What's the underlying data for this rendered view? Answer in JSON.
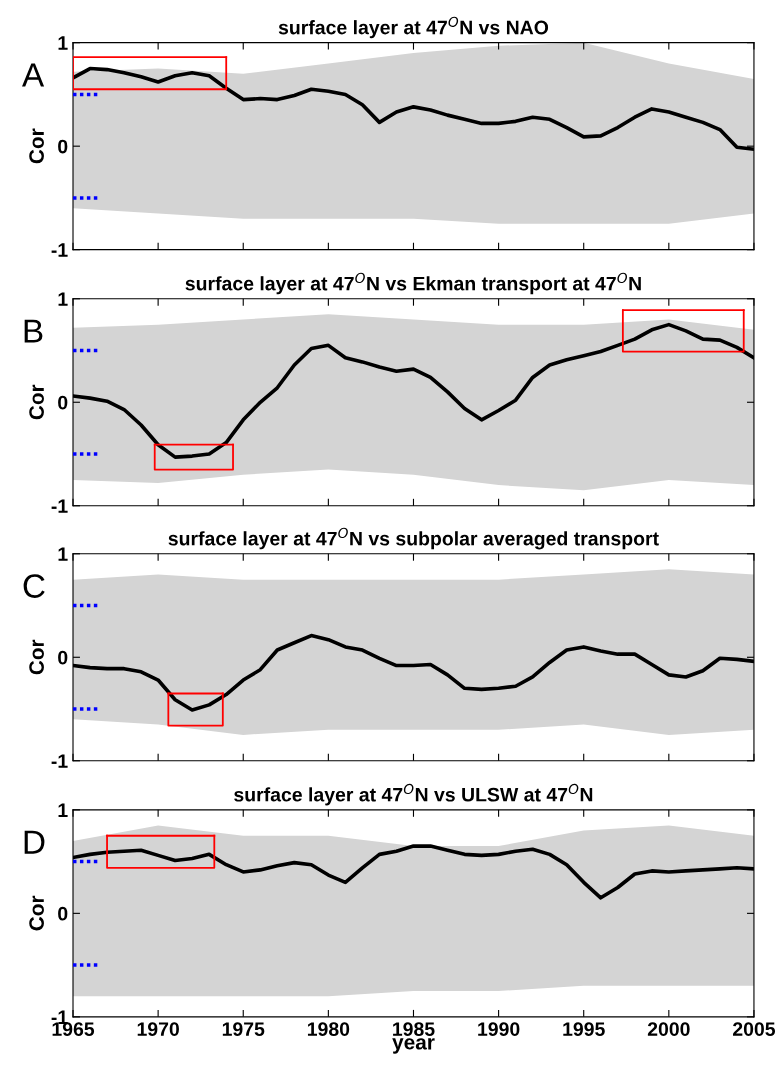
{
  "chart_data": [
    {
      "type": "line",
      "title": "surface layer at 47$^{O}$N vs NAO",
      "ylabel": "Cor",
      "annotations": [
        "A"
      ],
      "x": [
        1965,
        1966,
        1967,
        1968,
        1969,
        1970,
        1971,
        1972,
        1973,
        1974,
        1975,
        1976,
        1977,
        1978,
        1979,
        1980,
        1981,
        1982,
        1983,
        1984,
        1985,
        1986,
        1987,
        1988,
        1989,
        1990,
        1991,
        1992,
        1993,
        1994,
        1995,
        1996,
        1997,
        1998,
        1999,
        2000,
        2001,
        2002,
        2003,
        2004,
        2005
      ],
      "series": [
        {
          "color": "#d4d4d4",
          "x": [
            1965,
            1970,
            1975,
            1980,
            1985,
            1990,
            1995,
            2000,
            2005
          ],
          "values": [
            null,
            null,
            null,
            null,
            null,
            null,
            null,
            null,
            null
          ],
          "lower": [
            -0.6,
            -0.65,
            -0.7,
            -0.7,
            -0.7,
            -0.75,
            -0.75,
            -0.75,
            -0.65
          ],
          "upper": [
            0.72,
            0.75,
            0.7,
            0.8,
            0.9,
            0.97,
            1.0,
            0.8,
            0.65
          ]
        },
        {
          "color": "#000000",
          "values": [
            0.66,
            0.75,
            0.74,
            0.71,
            0.67,
            0.62,
            0.68,
            0.71,
            0.68,
            0.56,
            0.45,
            0.46,
            0.45,
            0.49,
            0.55,
            0.53,
            0.5,
            0.4,
            0.23,
            0.33,
            0.38,
            0.35,
            0.3,
            0.26,
            0.22,
            0.22,
            0.24,
            0.28,
            0.26,
            0.18,
            0.09,
            0.1,
            0.18,
            0.28,
            0.36,
            0.33,
            0.28,
            0.23,
            0.16,
            -0.01,
            -0.03
          ]
        },
        {
          "color": "#ff0000",
          "x": [
            1965,
            1965,
            1974,
            1974
          ],
          "values": [
            0.86,
            0.55,
            0.55,
            0.86
          ]
        },
        {
          "color": "#ff0000",
          "x": [
            1965,
            1974
          ],
          "values": [
            0.86,
            0.86
          ]
        }
      ],
      "xlim": [
        1965,
        2005
      ],
      "xticks": [
        {
          "value": 1965,
          "label": null
        },
        {
          "value": 1970,
          "label": null
        },
        {
          "value": 1975,
          "label": null
        },
        {
          "value": 1980,
          "label": null
        },
        {
          "value": 1985,
          "label": null
        },
        {
          "value": 1990,
          "label": null
        },
        {
          "value": 1995,
          "label": null
        },
        {
          "value": 2000,
          "label": null
        },
        {
          "value": 2005,
          "label": null
        }
      ],
      "ylim": [
        -1,
        1
      ],
      "yticks": [
        -1,
        0,
        1
      ],
      "tick_labels": "y",
      "ref_lines": [
        {
          "axis": "y",
          "value": 0.5,
          "color": "#0000ff",
          "line_style": "dotted"
        },
        {
          "axis": "y",
          "value": -0.5,
          "color": "#0000ff",
          "line_style": "dotted"
        }
      ]
    },
    {
      "type": "line",
      "title": "surface layer at 47$^{O}$N vs Ekman transport at 47$^{O}$N",
      "ylabel": "Cor",
      "annotations": [
        "B"
      ],
      "x": [
        1965,
        1966,
        1967,
        1968,
        1969,
        1970,
        1971,
        1972,
        1973,
        1974,
        1975,
        1976,
        1977,
        1978,
        1979,
        1980,
        1981,
        1982,
        1983,
        1984,
        1985,
        1986,
        1987,
        1988,
        1989,
        1990,
        1991,
        1992,
        1993,
        1994,
        1995,
        1996,
        1997,
        1998,
        1999,
        2000,
        2001,
        2002,
        2003,
        2004,
        2005
      ],
      "series": [
        {
          "color": "#d4d4d4",
          "x": [
            1965,
            1970,
            1975,
            1980,
            1985,
            1990,
            1995,
            2000,
            2005
          ],
          "values": [
            null,
            null,
            null,
            null,
            null,
            null,
            null,
            null,
            null
          ],
          "lower": [
            -0.75,
            -0.78,
            -0.7,
            -0.65,
            -0.7,
            -0.8,
            -0.85,
            -0.75,
            -0.8
          ],
          "upper": [
            0.72,
            0.75,
            0.8,
            0.85,
            0.8,
            0.75,
            0.75,
            0.8,
            0.7
          ]
        },
        {
          "color": "#000000",
          "values": [
            0.06,
            0.04,
            0.01,
            -0.07,
            -0.22,
            -0.41,
            -0.53,
            -0.52,
            -0.5,
            -0.39,
            -0.17,
            0.0,
            0.14,
            0.36,
            0.52,
            0.55,
            0.43,
            0.39,
            0.34,
            0.3,
            0.32,
            0.24,
            0.1,
            -0.06,
            -0.17,
            -0.08,
            0.02,
            0.24,
            0.36,
            0.41,
            0.45,
            0.49,
            0.55,
            0.61,
            0.7,
            0.75,
            0.69,
            0.61,
            0.6,
            0.53,
            0.43
          ]
        },
        {
          "color": "#ff0000",
          "x": [
            1969.8,
            1969.8,
            1974.4,
            1974.4
          ],
          "values": [
            -0.41,
            -0.65,
            -0.65,
            -0.41
          ]
        },
        {
          "color": "#ff0000",
          "x": [
            1969.8,
            1974.4
          ],
          "values": [
            -0.41,
            -0.41
          ]
        },
        {
          "color": "#ff0000",
          "x": [
            1997.3,
            1997.3,
            2004.4,
            2004.4
          ],
          "values": [
            0.89,
            0.49,
            0.49,
            0.89
          ]
        },
        {
          "color": "#ff0000",
          "x": [
            1997.3,
            2004.4
          ],
          "values": [
            0.89,
            0.89
          ]
        }
      ],
      "xlim": [
        1965,
        2005
      ],
      "xticks": [
        {
          "value": 1965,
          "label": null
        },
        {
          "value": 1970,
          "label": null
        },
        {
          "value": 1975,
          "label": null
        },
        {
          "value": 1980,
          "label": null
        },
        {
          "value": 1985,
          "label": null
        },
        {
          "value": 1990,
          "label": null
        },
        {
          "value": 1995,
          "label": null
        },
        {
          "value": 2000,
          "label": null
        },
        {
          "value": 2005,
          "label": null
        }
      ],
      "ylim": [
        -1,
        1
      ],
      "yticks": [
        -1,
        0,
        1
      ],
      "tick_labels": "y",
      "ref_lines": [
        {
          "axis": "y",
          "value": 0.5,
          "color": "#0000ff",
          "line_style": "dotted"
        },
        {
          "axis": "y",
          "value": -0.5,
          "color": "#0000ff",
          "line_style": "dotted"
        }
      ]
    },
    {
      "type": "line",
      "title": "surface layer at 47$^{O}$N vs subpolar averaged transport",
      "ylabel": "Cor",
      "annotations": [
        "C"
      ],
      "x": [
        1965,
        1966,
        1967,
        1968,
        1969,
        1970,
        1971,
        1972,
        1973,
        1974,
        1975,
        1976,
        1977,
        1978,
        1979,
        1980,
        1981,
        1982,
        1983,
        1984,
        1985,
        1986,
        1987,
        1988,
        1989,
        1990,
        1991,
        1992,
        1993,
        1994,
        1995,
        1996,
        1997,
        1998,
        1999,
        2000,
        2001,
        2002,
        2003,
        2004,
        2005
      ],
      "series": [
        {
          "color": "#d4d4d4",
          "x": [
            1965,
            1970,
            1975,
            1980,
            1985,
            1990,
            1995,
            2000,
            2005
          ],
          "values": [
            null,
            null,
            null,
            null,
            null,
            null,
            null,
            null,
            null
          ],
          "lower": [
            -0.6,
            -0.65,
            -0.75,
            -0.7,
            -0.7,
            -0.7,
            -0.65,
            -0.75,
            -0.7
          ],
          "upper": [
            0.75,
            0.8,
            0.75,
            0.75,
            0.75,
            0.75,
            0.8,
            0.85,
            0.8
          ]
        },
        {
          "color": "#000000",
          "values": [
            -0.08,
            -0.1,
            -0.11,
            -0.11,
            -0.14,
            -0.22,
            -0.41,
            -0.51,
            -0.46,
            -0.36,
            -0.22,
            -0.12,
            0.07,
            0.14,
            0.21,
            0.17,
            0.1,
            0.07,
            -0.01,
            -0.08,
            -0.08,
            -0.07,
            -0.17,
            -0.3,
            -0.31,
            -0.3,
            -0.28,
            -0.19,
            -0.05,
            0.07,
            0.1,
            0.06,
            0.03,
            0.03,
            -0.07,
            -0.17,
            -0.19,
            -0.13,
            -0.01,
            -0.02,
            -0.04
          ]
        },
        {
          "color": "#ff0000",
          "x": [
            1970.6,
            1970.6,
            1973.8,
            1973.8
          ],
          "values": [
            -0.35,
            -0.66,
            -0.66,
            -0.35
          ]
        },
        {
          "color": "#ff0000",
          "x": [
            1970.6,
            1973.8
          ],
          "values": [
            -0.35,
            -0.35
          ]
        }
      ],
      "xlim": [
        1965,
        2005
      ],
      "xticks": [
        {
          "value": 1965,
          "label": null
        },
        {
          "value": 1970,
          "label": null
        },
        {
          "value": 1975,
          "label": null
        },
        {
          "value": 1980,
          "label": null
        },
        {
          "value": 1985,
          "label": null
        },
        {
          "value": 1990,
          "label": null
        },
        {
          "value": 1995,
          "label": null
        },
        {
          "value": 2000,
          "label": null
        },
        {
          "value": 2005,
          "label": null
        }
      ],
      "ylim": [
        -1,
        1
      ],
      "yticks": [
        -1,
        0,
        1
      ],
      "tick_labels": "y",
      "ref_lines": [
        {
          "axis": "y",
          "value": 0.5,
          "color": "#0000ff",
          "line_style": "dotted"
        },
        {
          "axis": "y",
          "value": -0.5,
          "color": "#0000ff",
          "line_style": "dotted"
        }
      ]
    },
    {
      "type": "line",
      "title": "surface layer at 47$^{O}$N vs ULSW at 47$^{O}$N",
      "xlabel": "year",
      "ylabel": "Cor",
      "annotations": [
        "D"
      ],
      "x": [
        1965,
        1966,
        1967,
        1968,
        1969,
        1970,
        1971,
        1972,
        1973,
        1974,
        1975,
        1976,
        1977,
        1978,
        1979,
        1980,
        1981,
        1982,
        1983,
        1984,
        1985,
        1986,
        1987,
        1988,
        1989,
        1990,
        1991,
        1992,
        1993,
        1994,
        1995,
        1996,
        1997,
        1998,
        1999,
        2000,
        2001,
        2002,
        2003,
        2004,
        2005
      ],
      "series": [
        {
          "color": "#d4d4d4",
          "x": [
            1965,
            1970,
            1975,
            1980,
            1985,
            1990,
            1995,
            2000,
            2005
          ],
          "values": [
            null,
            null,
            null,
            null,
            null,
            null,
            null,
            null,
            null
          ],
          "lower": [
            -0.8,
            -0.8,
            -0.8,
            -0.8,
            -0.75,
            -0.75,
            -0.7,
            -0.7,
            -0.7
          ],
          "upper": [
            0.7,
            0.85,
            0.75,
            0.75,
            0.65,
            0.65,
            0.8,
            0.85,
            0.75
          ]
        },
        {
          "color": "#000000",
          "values": [
            0.54,
            0.57,
            0.59,
            0.6,
            0.61,
            0.56,
            0.51,
            0.53,
            0.57,
            0.47,
            0.4,
            0.42,
            0.46,
            0.49,
            0.47,
            0.37,
            0.3,
            0.44,
            0.57,
            0.6,
            0.65,
            0.65,
            0.61,
            0.57,
            0.56,
            0.57,
            0.6,
            0.62,
            0.57,
            0.47,
            0.3,
            0.15,
            0.25,
            0.38,
            0.41,
            0.4,
            0.41,
            0.42,
            0.43,
            0.44,
            0.43
          ]
        },
        {
          "color": "#ff0000",
          "x": [
            1967.0,
            1967.0,
            1973.3,
            1973.3
          ],
          "values": [
            0.75,
            0.44,
            0.44,
            0.75
          ]
        },
        {
          "color": "#ff0000",
          "x": [
            1967.0,
            1973.3
          ],
          "values": [
            0.75,
            0.75
          ]
        }
      ],
      "xlim": [
        1965,
        2005
      ],
      "xticks": [
        1965,
        1970,
        1975,
        1980,
        1985,
        1990,
        1995,
        2000,
        2005
      ],
      "ylim": [
        -1,
        1
      ],
      "yticks": [
        -1,
        0,
        1
      ],
      "ref_lines": [
        {
          "axis": "y",
          "value": 0.5,
          "color": "#0000ff",
          "line_style": "dotted"
        },
        {
          "axis": "y",
          "value": -0.5,
          "color": "#0000ff",
          "line_style": "dotted"
        }
      ]
    }
  ]
}
